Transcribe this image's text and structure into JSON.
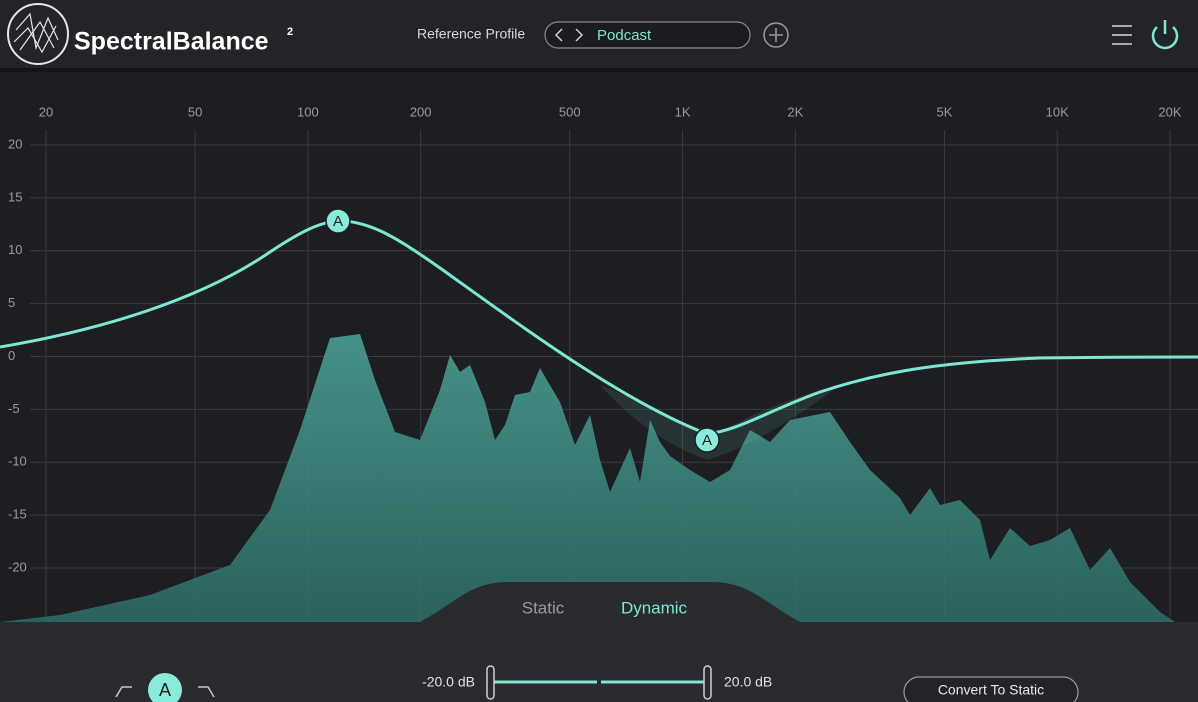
{
  "header": {
    "logo_name": "SpectralBalance",
    "logo_superscript": "2",
    "reference_label": "Reference Profile",
    "profile": "Podcast"
  },
  "analyzer": {
    "freq_ticks": [
      20,
      50,
      100,
      200,
      500,
      {
        "value": 1000,
        "label": "1K"
      },
      {
        "value": 2000,
        "label": "2K"
      },
      {
        "value": 5000,
        "label": "5K"
      },
      {
        "value": 10000,
        "label": "10K"
      },
      {
        "value": 20000,
        "label": "20K"
      }
    ],
    "db_ticks": [
      20,
      15,
      10,
      5,
      0,
      -5,
      -10,
      -15,
      -20
    ]
  },
  "nodes": [
    {
      "label": "A"
    },
    {
      "label": "A"
    }
  ],
  "mode_toggle": {
    "options": [
      "Static",
      "Dynamic"
    ],
    "selected": "Dynamic"
  },
  "footer": {
    "band_label": "A",
    "range_min": "-20.0 dB",
    "range_max": "20.0 dB",
    "button": "Convert To Static"
  }
}
